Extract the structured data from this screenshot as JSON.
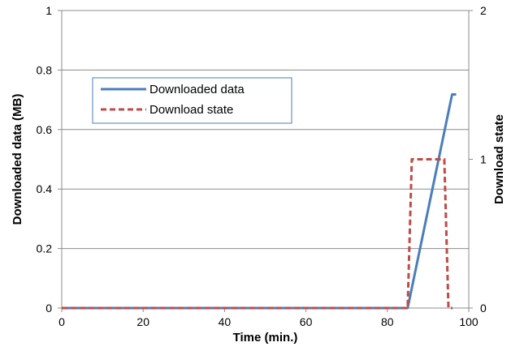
{
  "chart_data": {
    "type": "line",
    "xlabel": "Time (min.)",
    "ylabel": "Downloaded data (MB)",
    "y2label": "Download state",
    "xlim": [
      0,
      100
    ],
    "ylim": [
      0,
      1
    ],
    "y2lim": [
      0,
      2
    ],
    "x_ticks": [
      0,
      20,
      40,
      60,
      80,
      100
    ],
    "y_ticks": [
      0,
      0.2,
      0.4,
      0.6,
      0.8,
      1
    ],
    "y2_ticks": [
      0,
      1,
      2
    ],
    "x_tick_labels": [
      "0",
      "20",
      "40",
      "60",
      "80",
      "100"
    ],
    "y_tick_labels": [
      "0",
      "0.2",
      "0.4",
      "0.6",
      "0.8",
      "1"
    ],
    "y2_tick_labels": [
      "0",
      "1",
      "2"
    ],
    "grid": "horizontal",
    "legend_position": "upper-left",
    "series": [
      {
        "name": "Downloaded data",
        "axis": "left",
        "color": "#4a7ebb",
        "style": "solid",
        "x": [
          0,
          85,
          95.9,
          96.9
        ],
        "y": [
          0,
          0,
          0.718,
          0.718
        ]
      },
      {
        "name": "Download state",
        "axis": "right",
        "color": "#be4b48",
        "style": "dashed",
        "x": [
          0,
          85,
          86,
          94,
          95,
          96
        ],
        "y": [
          0,
          0,
          1,
          1,
          0,
          0
        ]
      }
    ]
  }
}
